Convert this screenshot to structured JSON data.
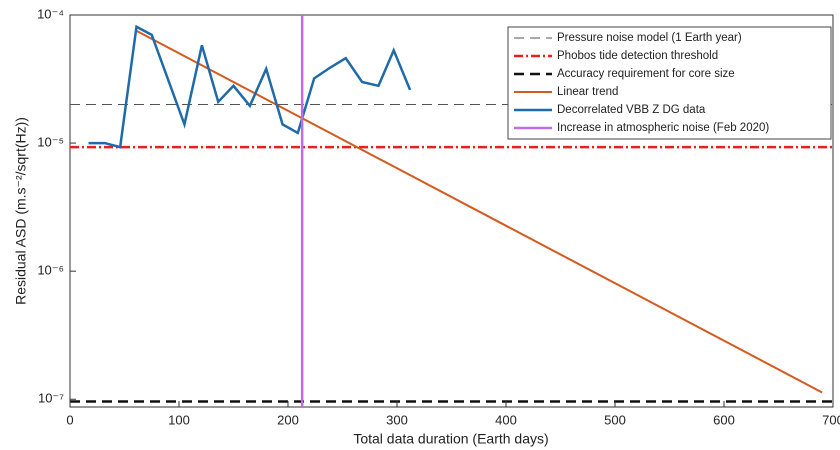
{
  "chart_data": {
    "type": "line",
    "xlabel": "Total data duration (Earth days)",
    "ylabel": "Residual ASD (m.s⁻²/sqrt(Hz))",
    "xlim": [
      0,
      700
    ],
    "xticks": [
      0,
      100,
      200,
      300,
      400,
      500,
      600,
      700
    ],
    "ylim": [
      8.7e-08,
      0.0001
    ],
    "yscale": "log",
    "yticks": [
      {
        "value": 1e-07,
        "label": "10⁻⁷"
      },
      {
        "value": 1e-06,
        "label": "10⁻⁶"
      },
      {
        "value": 1e-05,
        "label": "10⁻⁵"
      },
      {
        "value": 0.0001,
        "label": "10⁻⁴"
      }
    ],
    "legend": "upper right",
    "series": [
      {
        "name": "Pressure noise model (1 Earth year)",
        "color": "#555555",
        "dash": "dashed",
        "width": 1,
        "x": [
          0,
          700
        ],
        "values": [
          2e-05,
          2e-05
        ]
      },
      {
        "name": "Phobos tide detection threshold",
        "color": "#e8201c",
        "dash": "dashdot",
        "width": 2.5,
        "x": [
          0,
          700
        ],
        "values": [
          9.3e-06,
          9.3e-06
        ]
      },
      {
        "name": "Accuracy requirement for core size",
        "color": "#111111",
        "dash": "dashed",
        "width": 2.5,
        "x": [
          0,
          700
        ],
        "values": [
          9.6e-08,
          9.6e-08
        ]
      },
      {
        "name": "Linear trend",
        "color": "#d45a1e",
        "dash": "solid",
        "width": 2,
        "x": [
          60,
          690
        ],
        "values": [
          7.6e-05,
          1.13e-07
        ]
      },
      {
        "name": "Decorrelated VBB Z DG data",
        "color": "#1f6aa8",
        "dash": "solid",
        "width": 2.5,
        "x": [
          17,
          32,
          46,
          61,
          75,
          105,
          121,
          136,
          150,
          165,
          180,
          195,
          209,
          224,
          239,
          253,
          268,
          283,
          297,
          312
        ],
        "values": [
          1e-05,
          1e-05,
          9.3e-06,
          8.1e-05,
          7e-05,
          1.4e-05,
          5.8e-05,
          2.1e-05,
          2.8e-05,
          1.95e-05,
          3.8e-05,
          1.4e-05,
          1.2e-05,
          3.2e-05,
          3.9e-05,
          4.6e-05,
          3e-05,
          2.8e-05,
          5.3e-05,
          2.6e-05
        ]
      },
      {
        "name": "Increase in atmospheric noise (Feb 2020)",
        "color": "#bf6ce8",
        "dash": "solid",
        "width": 2.5,
        "xline": 213
      }
    ]
  }
}
